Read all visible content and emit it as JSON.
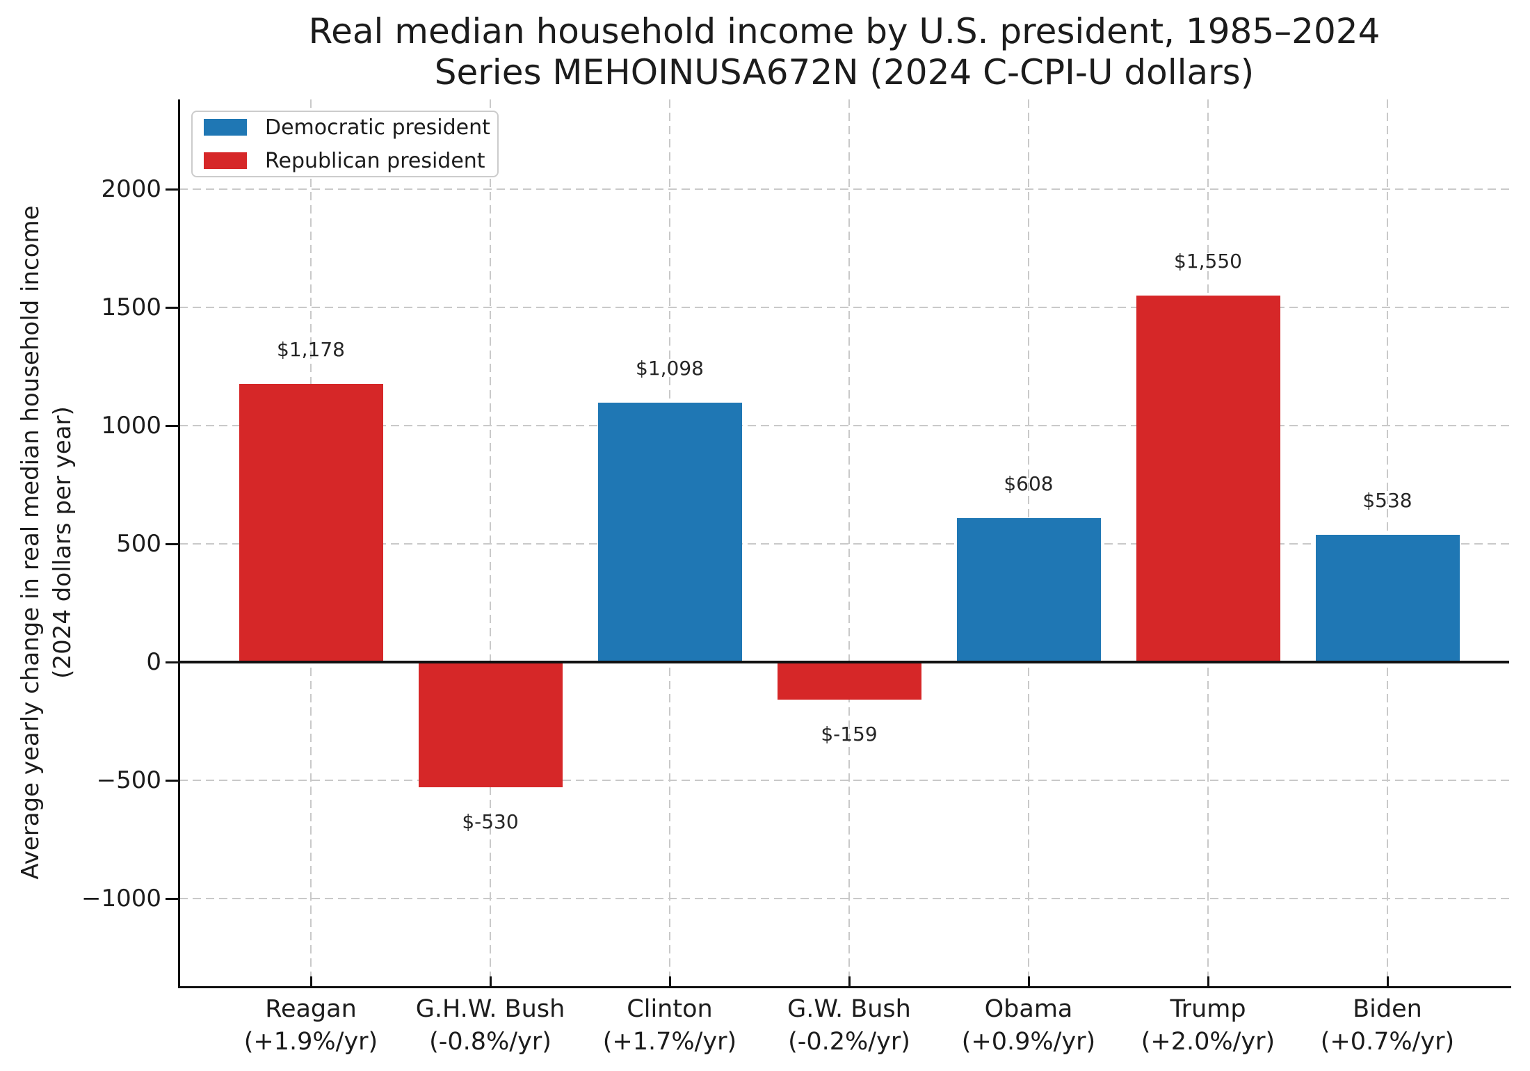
{
  "title": {
    "line1": "Real median household income by U.S. president, 1985–2024",
    "line2": "Series MEHOINUSA672N (2024 C-CPI-U dollars)"
  },
  "ylabel": {
    "line1": "Average yearly change in real median household income",
    "line2": "(2024 dollars per year)"
  },
  "legend": [
    {
      "label": "Democratic president",
      "color": "#1f77b4"
    },
    {
      "label": "Republican president",
      "color": "#d62728"
    }
  ],
  "chart_data": {
    "type": "bar",
    "title": "Real median household income by U.S. president, 1985–2024 — Series MEHOINUSA672N (2024 C-CPI-U dollars)",
    "xlabel": "",
    "ylabel": "Average yearly change in real median household income (2024 dollars per year)",
    "categories": [
      "Reagan",
      "G.H.W. Bush",
      "Clinton",
      "G.W. Bush",
      "Obama",
      "Trump",
      "Biden"
    ],
    "category_sublabels": [
      "(+1.9%/yr)",
      "(-0.8%/yr)",
      "(+1.7%/yr)",
      "(-0.2%/yr)",
      "(+0.9%/yr)",
      "(+2.0%/yr)",
      "(+0.7%/yr)"
    ],
    "series": [
      {
        "name": "Average yearly change in real median household income",
        "values": [
          1178,
          -530,
          1098,
          -159,
          608,
          1550,
          538
        ]
      }
    ],
    "bar_labels": [
      "$1,178",
      "$-530",
      "$1,098",
      "$-159",
      "$608",
      "$1,550",
      "$538"
    ],
    "parties": [
      "R",
      "R",
      "D",
      "R",
      "D",
      "R",
      "D"
    ],
    "party_colors": {
      "D": "#1f77b4",
      "R": "#d62728"
    },
    "yticks": [
      2000,
      1500,
      1000,
      500,
      0,
      -500,
      -1000
    ],
    "ytick_labels": [
      "2000",
      "1500",
      "1000",
      "500",
      "0",
      "−500",
      "−1000"
    ],
    "ylim": [
      -1370,
      2380
    ],
    "grid": "both, dashed",
    "gridline_color": "#c9c9c9",
    "zero_line": true,
    "legend_position": "upper-left"
  }
}
